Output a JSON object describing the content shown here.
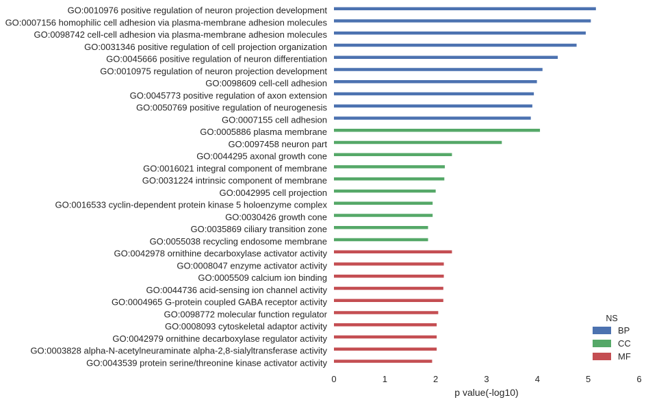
{
  "chart_data": {
    "type": "bar",
    "orientation": "horizontal",
    "xlabel": "p value(-log10)",
    "xlim": [
      0,
      6
    ],
    "xticks": [
      0,
      1,
      2,
      3,
      4,
      5,
      6
    ],
    "grid": false,
    "legend": {
      "title": "NS",
      "placement": "bottom-right",
      "entries": [
        {
          "name": "BP",
          "color": "#4c72b0"
        },
        {
          "name": "CC",
          "color": "#55a868"
        },
        {
          "name": "MF",
          "color": "#c44e52"
        }
      ]
    },
    "categories": [
      "GO:0010976 positive regulation of neuron projection development",
      "GO:0007156 homophilic cell adhesion via plasma-membrane adhesion molecules",
      "GO:0098742 cell-cell adhesion via plasma-membrane adhesion molecules",
      "GO:0031346 positive regulation of cell projection organization",
      "GO:0045666 positive regulation of neuron differentiation",
      "GO:0010975 regulation of neuron projection development",
      "GO:0098609 cell-cell adhesion",
      "GO:0045773 positive regulation of axon extension",
      "GO:0050769 positive regulation of neurogenesis",
      "GO:0007155 cell adhesion",
      "GO:0005886 plasma membrane",
      "GO:0097458 neuron part",
      "GO:0044295 axonal growth cone",
      "GO:0016021 integral component of membrane",
      "GO:0031224 intrinsic component of membrane",
      "GO:0042995 cell projection",
      "GO:0016533 cyclin-dependent protein kinase 5 holoenzyme complex",
      "GO:0030426 growth cone",
      "GO:0035869 ciliary transition zone",
      "GO:0055038 recycling endosome membrane",
      "GO:0042978 ornithine decarboxylase activator activity",
      "GO:0008047 enzyme activator activity",
      "GO:0005509 calcium ion binding",
      "GO:0044736 acid-sensing ion channel activity",
      "GO:0004965 G-protein coupled GABA receptor activity",
      "GO:0098772 molecular function regulator",
      "GO:0008093 cytoskeletal adaptor activity",
      "GO:0042979 ornithine decarboxylase regulator activity",
      "GO:0003828 alpha-N-acetylneuraminate alpha-2,8-sialyltransferase activity",
      "GO:0043539 protein serine/threonine kinase activator activity"
    ],
    "groups": [
      "BP",
      "BP",
      "BP",
      "BP",
      "BP",
      "BP",
      "BP",
      "BP",
      "BP",
      "BP",
      "CC",
      "CC",
      "CC",
      "CC",
      "CC",
      "CC",
      "CC",
      "CC",
      "CC",
      "CC",
      "MF",
      "MF",
      "MF",
      "MF",
      "MF",
      "MF",
      "MF",
      "MF",
      "MF",
      "MF"
    ],
    "values": [
      5.15,
      5.05,
      4.95,
      4.77,
      4.4,
      4.1,
      3.99,
      3.93,
      3.9,
      3.87,
      4.05,
      3.3,
      2.32,
      2.18,
      2.17,
      2.0,
      1.94,
      1.94,
      1.85,
      1.85,
      2.32,
      2.16,
      2.16,
      2.15,
      2.15,
      2.05,
      2.02,
      2.02,
      2.02,
      1.93
    ]
  }
}
